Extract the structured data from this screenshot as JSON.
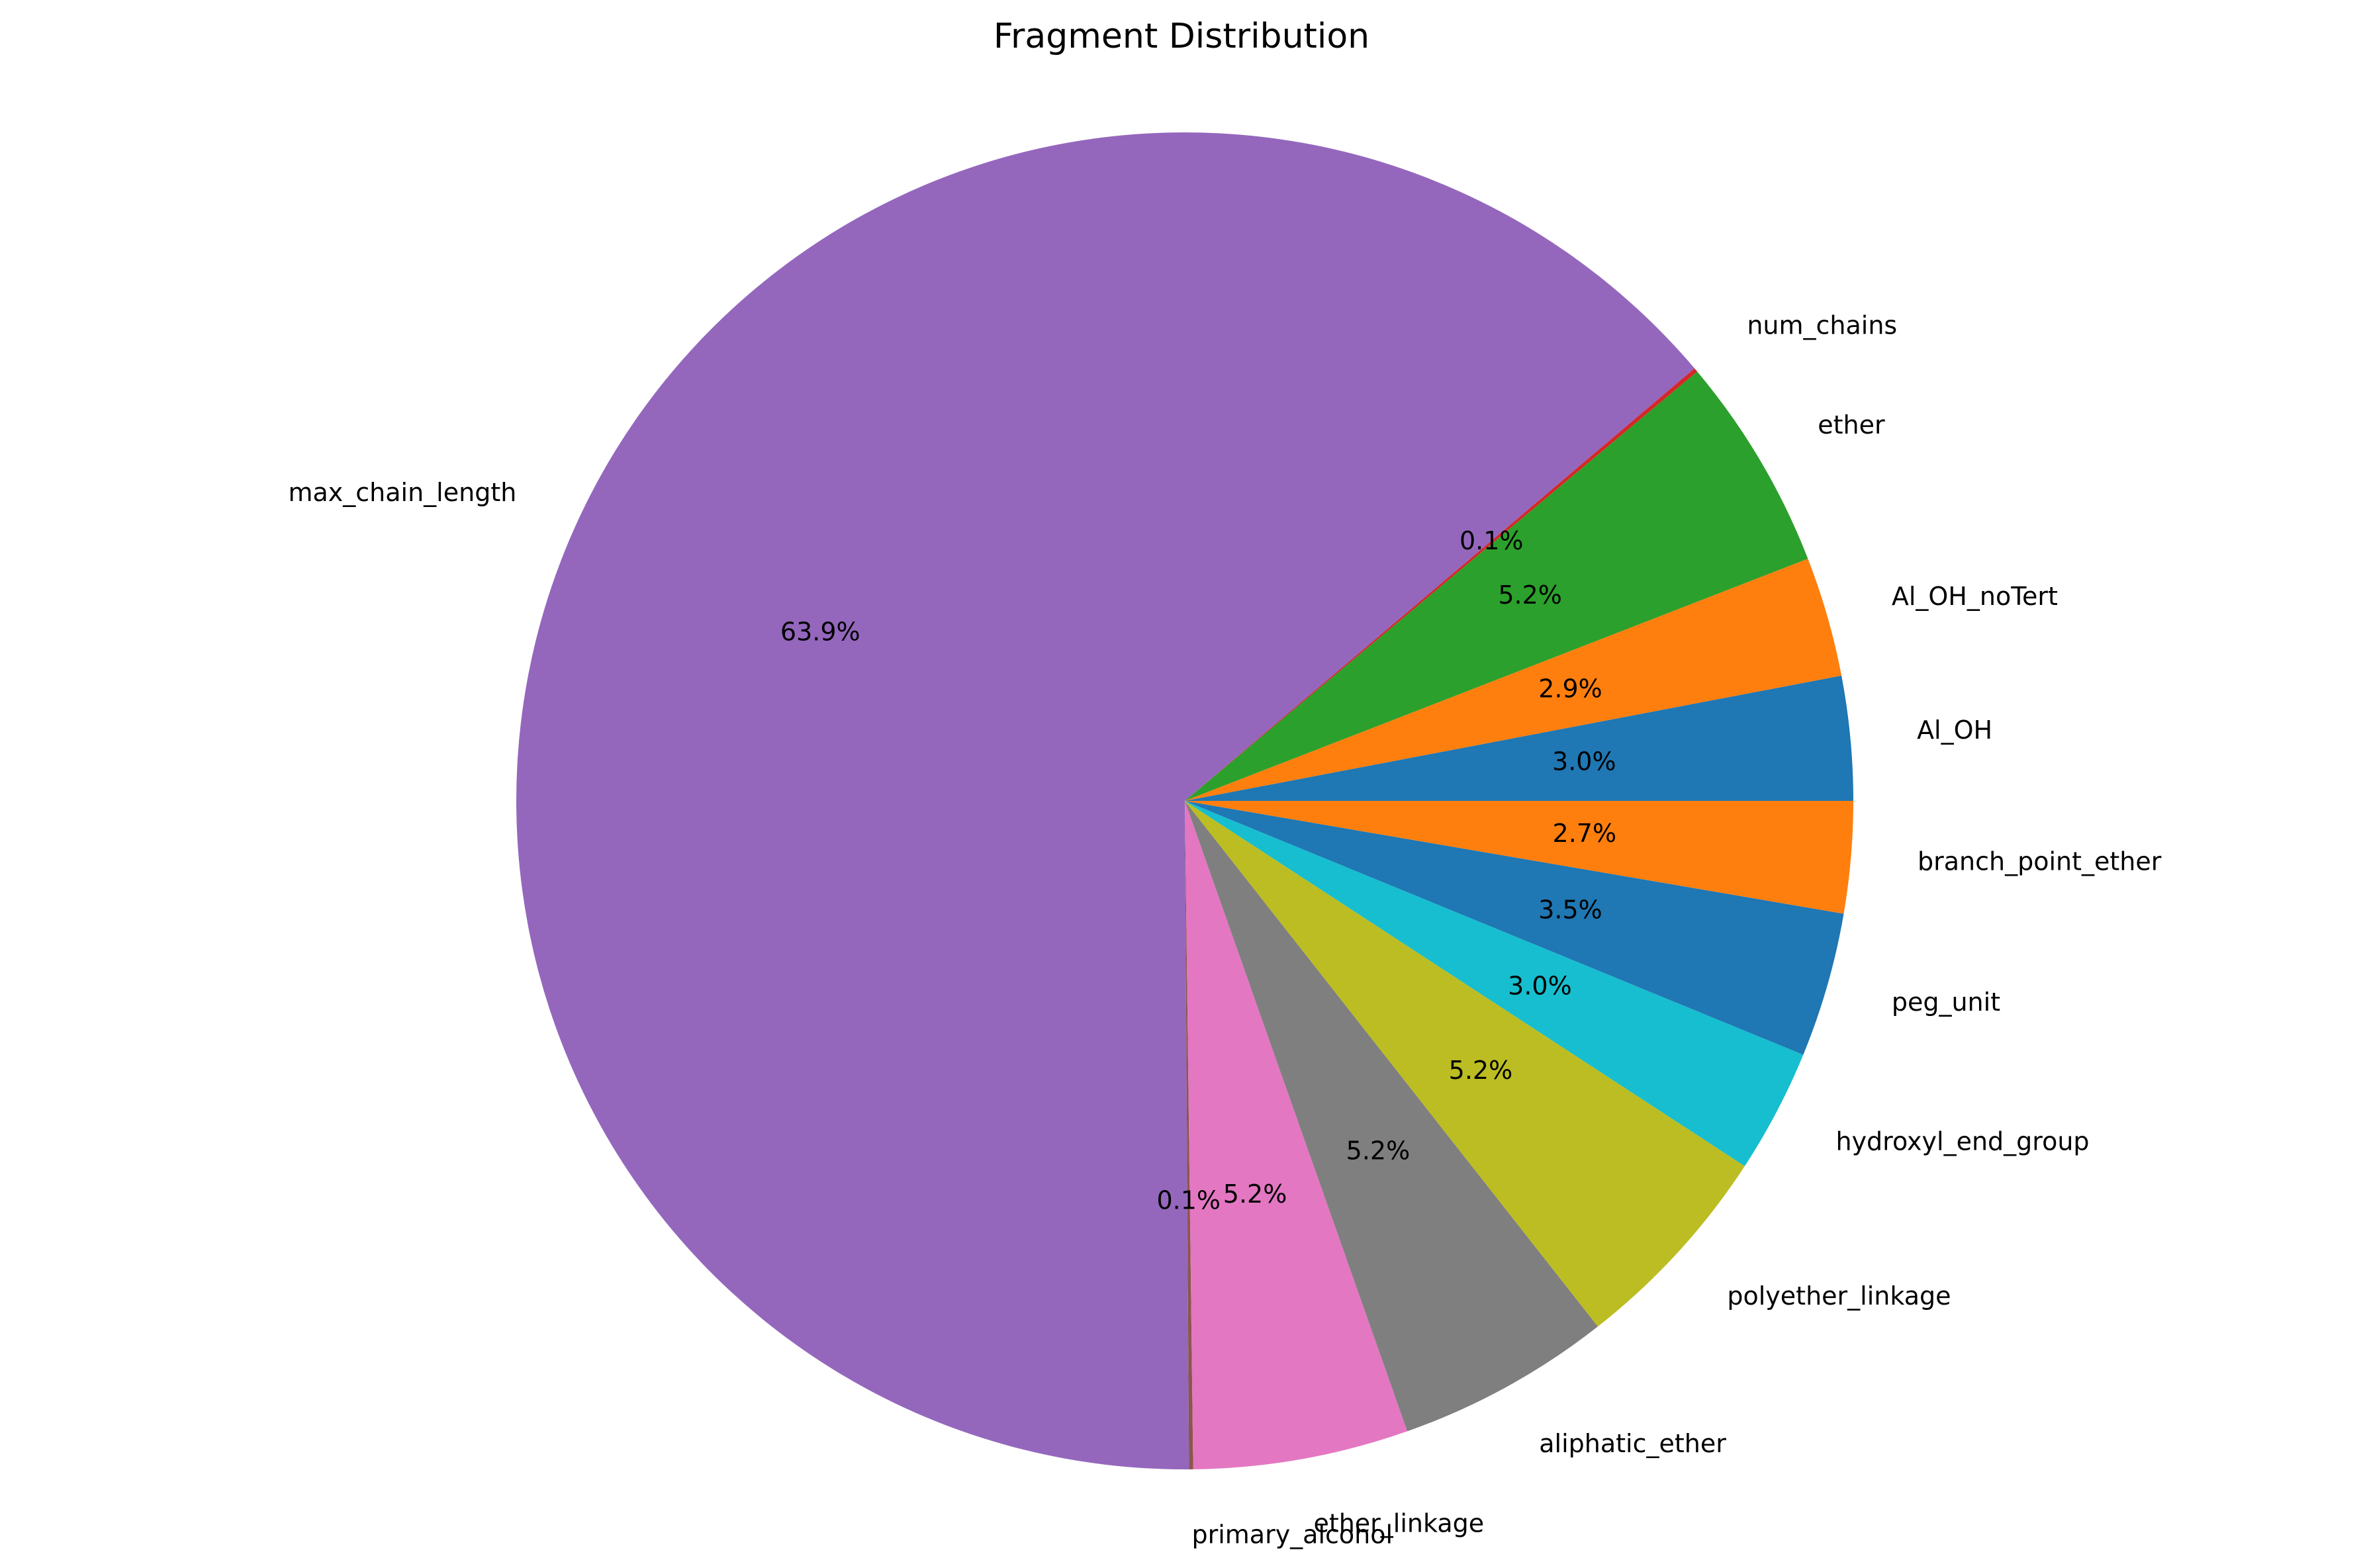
{
  "chart_data": {
    "type": "pie",
    "title": "Fragment Distribution",
    "start_angle_deg": 0,
    "direction": "counterclockwise",
    "slices": [
      {
        "label": "Al_OH",
        "value": 3.0,
        "pct_label": "3.0%",
        "color": "#1f77b4"
      },
      {
        "label": "Al_OH_noTert",
        "value": 2.9,
        "pct_label": "2.9%",
        "color": "#ff7f0e"
      },
      {
        "label": "ether",
        "value": 5.2,
        "pct_label": "5.2%",
        "color": "#2ca02c"
      },
      {
        "label": "num_chains",
        "value": 0.1,
        "pct_label": "0.1%",
        "color": "#d62728"
      },
      {
        "label": "max_chain_length",
        "value": 63.9,
        "pct_label": "63.9%",
        "color": "#9467bd"
      },
      {
        "label": "primary_alcohol",
        "value": 0.1,
        "pct_label": "0.1%",
        "color": "#8c564b"
      },
      {
        "label": "ether_linkage",
        "value": 5.2,
        "pct_label": "5.2%",
        "color": "#e377c2"
      },
      {
        "label": "aliphatic_ether",
        "value": 5.2,
        "pct_label": "5.2%",
        "color": "#7f7f7f"
      },
      {
        "label": "polyether_linkage",
        "value": 5.2,
        "pct_label": "5.2%",
        "color": "#bcbd22"
      },
      {
        "label": "hydroxyl_end_group",
        "value": 3.0,
        "pct_label": "3.0%",
        "color": "#17becf"
      },
      {
        "label": "peg_unit",
        "value": 3.5,
        "pct_label": "3.5%",
        "color": "#1f77b4"
      },
      {
        "label": "branch_point_ether",
        "value": 2.7,
        "pct_label": "2.7%",
        "color": "#ff7f0e"
      }
    ]
  }
}
